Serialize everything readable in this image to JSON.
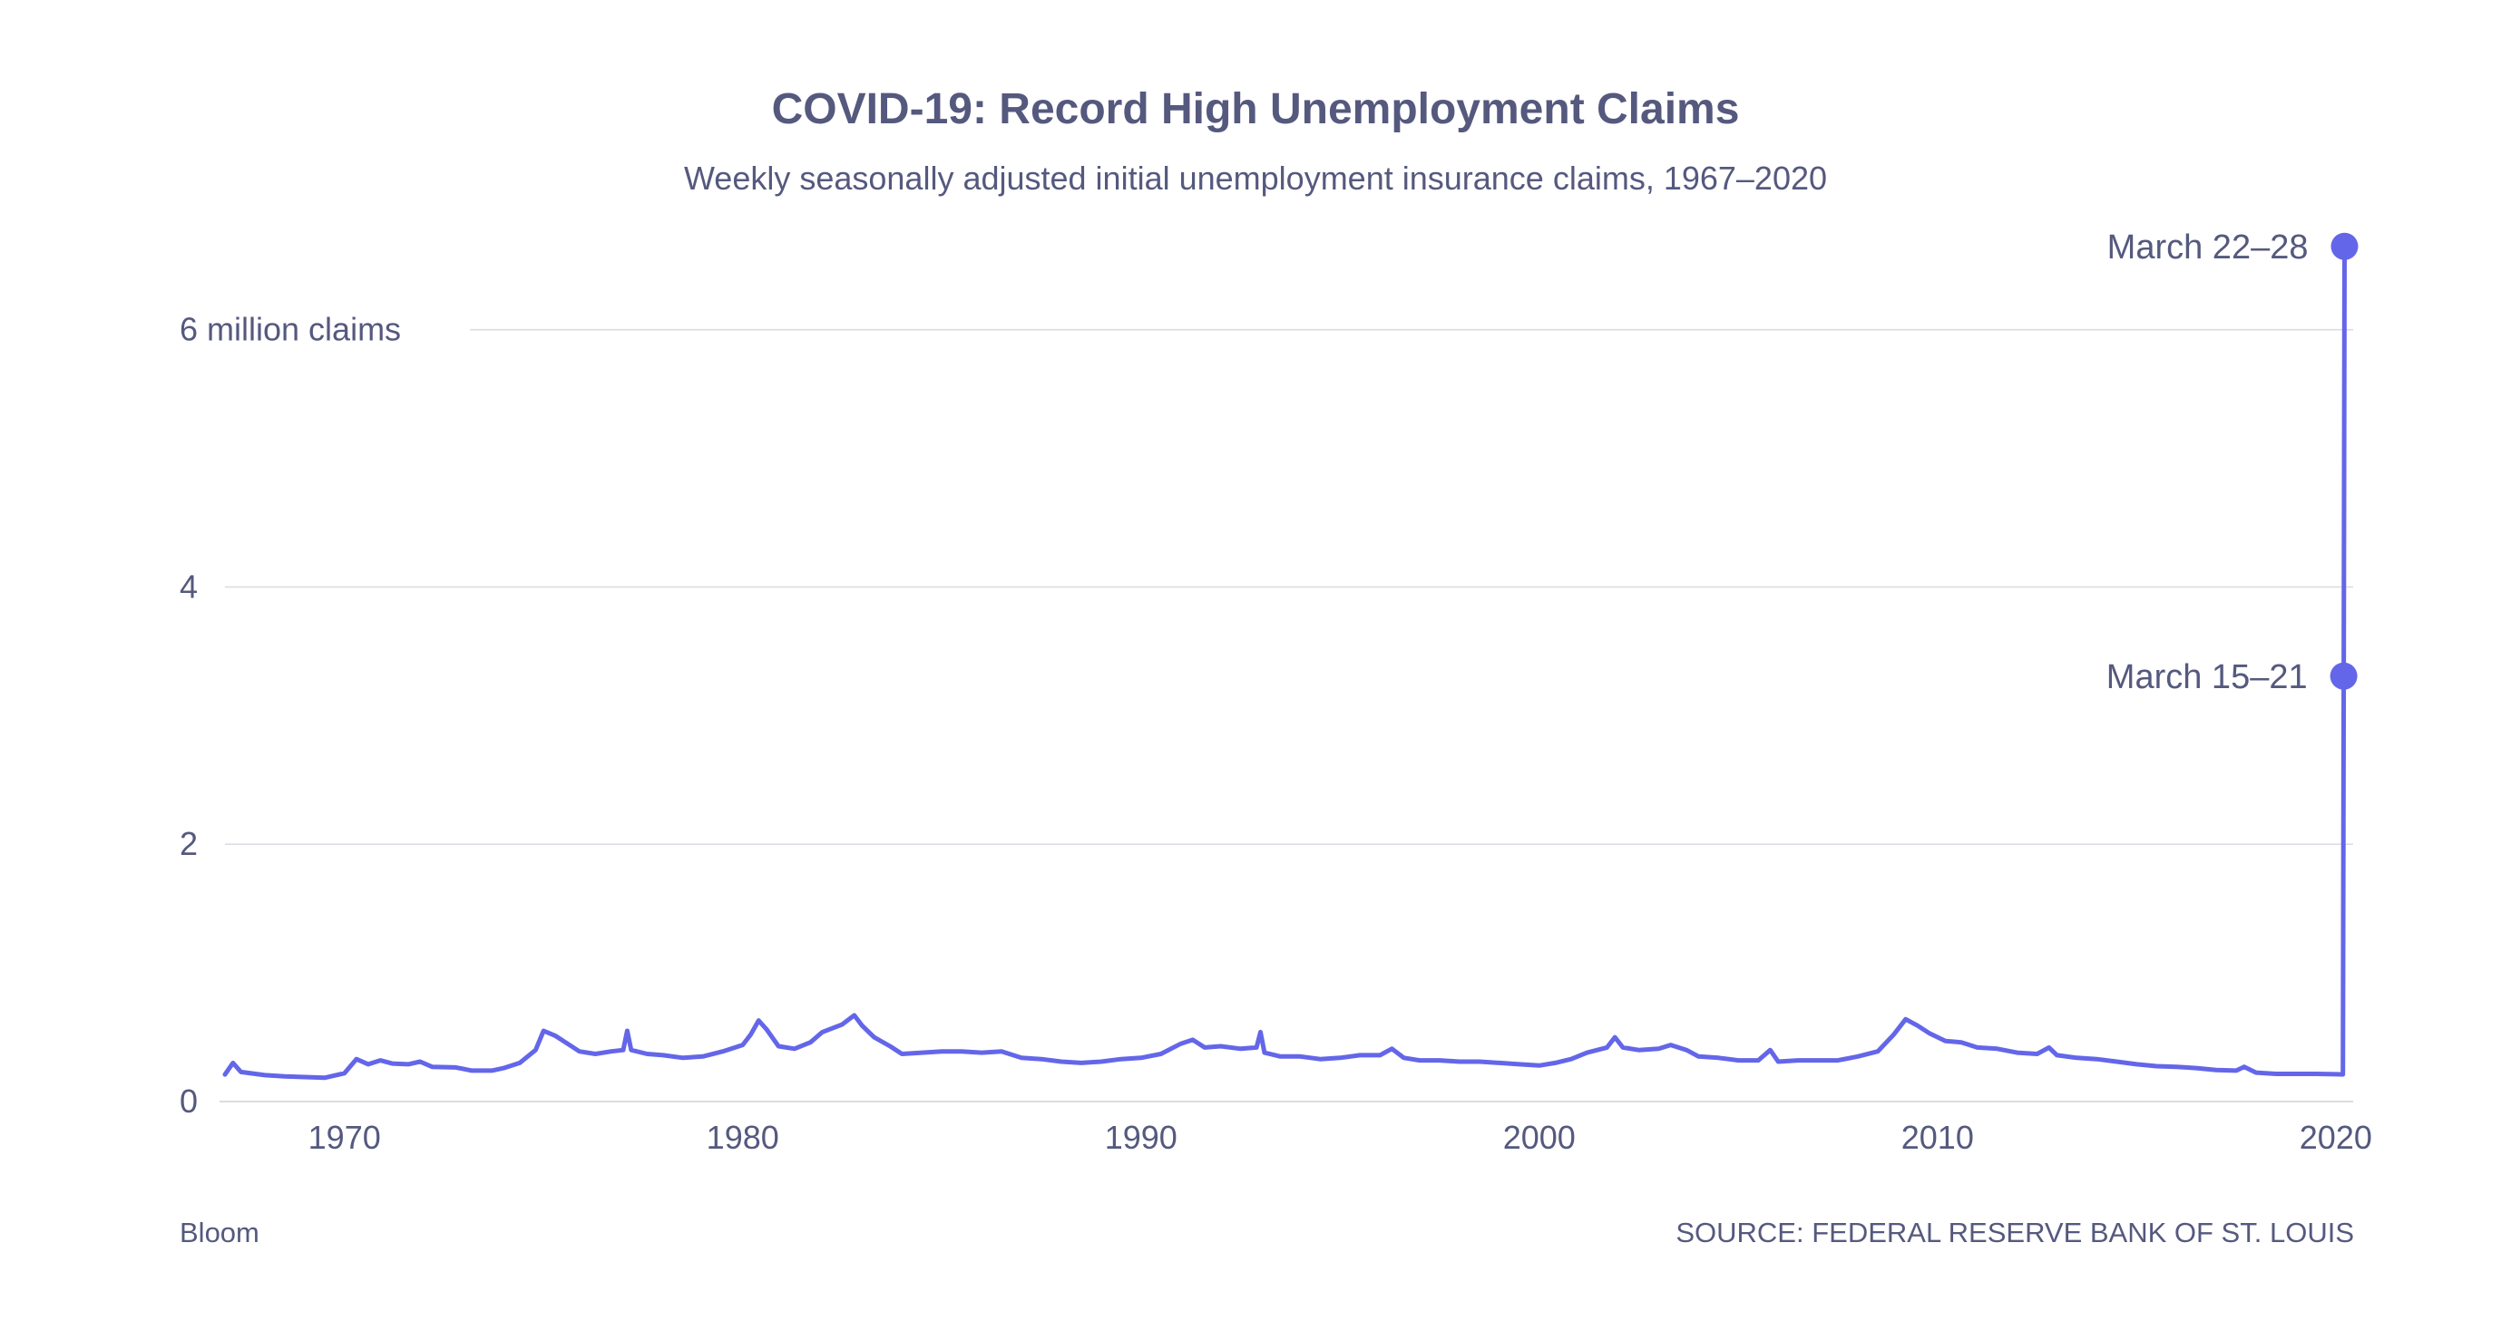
{
  "colors": {
    "series": "#6466e9",
    "text": "#55597e",
    "grid": "#dcdde3"
  },
  "footer": {
    "brand": "Bloom",
    "source": "SOURCE: FEDERAL RESERVE BANK OF ST. LOUIS"
  },
  "chart_data": {
    "type": "line",
    "title": "COVID-19: Record High Unemployment Claims",
    "subtitle": "Weekly seasonally adjusted initial unemployment insurance claims, 1967–2020",
    "xlabel": "",
    "ylabel": "",
    "x_unit": "year",
    "y_unit": "claims",
    "xlim": [
      1967.0,
      2020.3
    ],
    "ylim": [
      0,
      6900000
    ],
    "grid": true,
    "legend": "none",
    "x_ticks": [
      {
        "value": 1970,
        "label": "1970"
      },
      {
        "value": 1980,
        "label": "1980"
      },
      {
        "value": 1990,
        "label": "1990"
      },
      {
        "value": 2000,
        "label": "2000"
      },
      {
        "value": 2010,
        "label": "2010"
      },
      {
        "value": 2020,
        "label": "2020"
      }
    ],
    "y_ticks": [
      {
        "value": 0,
        "label": "0"
      },
      {
        "value": 2000000,
        "label": "2"
      },
      {
        "value": 4000000,
        "label": "4"
      },
      {
        "value": 6000000,
        "label": "6 million claims"
      }
    ],
    "series": [
      {
        "values": [
          [
            1967.0,
            210000
          ],
          [
            1967.2,
            300000
          ],
          [
            1967.4,
            230000
          ],
          [
            1968.0,
            205000
          ],
          [
            1968.5,
            195000
          ],
          [
            1969.0,
            190000
          ],
          [
            1969.5,
            185000
          ],
          [
            1970.0,
            220000
          ],
          [
            1970.3,
            330000
          ],
          [
            1970.6,
            290000
          ],
          [
            1970.9,
            320000
          ],
          [
            1971.2,
            295000
          ],
          [
            1971.6,
            290000
          ],
          [
            1971.9,
            310000
          ],
          [
            1972.2,
            270000
          ],
          [
            1972.8,
            265000
          ],
          [
            1973.2,
            240000
          ],
          [
            1973.7,
            240000
          ],
          [
            1974.0,
            260000
          ],
          [
            1974.4,
            300000
          ],
          [
            1974.8,
            400000
          ],
          [
            1975.0,
            550000
          ],
          [
            1975.3,
            510000
          ],
          [
            1975.6,
            450000
          ],
          [
            1975.9,
            390000
          ],
          [
            1976.3,
            370000
          ],
          [
            1976.7,
            390000
          ],
          [
            1977.0,
            400000
          ],
          [
            1977.1,
            550000
          ],
          [
            1977.2,
            400000
          ],
          [
            1977.6,
            370000
          ],
          [
            1978.0,
            360000
          ],
          [
            1978.5,
            340000
          ],
          [
            1979.0,
            350000
          ],
          [
            1979.5,
            390000
          ],
          [
            1980.0,
            440000
          ],
          [
            1980.2,
            520000
          ],
          [
            1980.4,
            630000
          ],
          [
            1980.6,
            560000
          ],
          [
            1980.9,
            430000
          ],
          [
            1981.3,
            410000
          ],
          [
            1981.7,
            460000
          ],
          [
            1982.0,
            540000
          ],
          [
            1982.5,
            600000
          ],
          [
            1982.8,
            670000
          ],
          [
            1983.0,
            590000
          ],
          [
            1983.3,
            500000
          ],
          [
            1983.7,
            430000
          ],
          [
            1984.0,
            370000
          ],
          [
            1984.5,
            380000
          ],
          [
            1985.0,
            390000
          ],
          [
            1985.5,
            390000
          ],
          [
            1986.0,
            380000
          ],
          [
            1986.5,
            390000
          ],
          [
            1987.0,
            340000
          ],
          [
            1987.5,
            330000
          ],
          [
            1988.0,
            310000
          ],
          [
            1988.5,
            300000
          ],
          [
            1989.0,
            310000
          ],
          [
            1989.5,
            330000
          ],
          [
            1990.0,
            340000
          ],
          [
            1990.5,
            370000
          ],
          [
            1991.0,
            450000
          ],
          [
            1991.3,
            480000
          ],
          [
            1991.6,
            420000
          ],
          [
            1992.0,
            430000
          ],
          [
            1992.5,
            410000
          ],
          [
            1992.9,
            420000
          ],
          [
            1993.0,
            540000
          ],
          [
            1993.1,
            380000
          ],
          [
            1993.5,
            350000
          ],
          [
            1994.0,
            350000
          ],
          [
            1994.5,
            330000
          ],
          [
            1995.0,
            340000
          ],
          [
            1995.5,
            360000
          ],
          [
            1996.0,
            360000
          ],
          [
            1996.3,
            410000
          ],
          [
            1996.6,
            340000
          ],
          [
            1997.0,
            320000
          ],
          [
            1997.5,
            320000
          ],
          [
            1998.0,
            310000
          ],
          [
            1998.5,
            310000
          ],
          [
            1999.0,
            300000
          ],
          [
            1999.5,
            290000
          ],
          [
            2000.0,
            280000
          ],
          [
            2000.4,
            300000
          ],
          [
            2000.8,
            330000
          ],
          [
            2001.2,
            380000
          ],
          [
            2001.7,
            420000
          ],
          [
            2001.9,
            500000
          ],
          [
            2002.1,
            420000
          ],
          [
            2002.5,
            400000
          ],
          [
            2003.0,
            410000
          ],
          [
            2003.3,
            440000
          ],
          [
            2003.7,
            400000
          ],
          [
            2004.0,
            350000
          ],
          [
            2004.5,
            340000
          ],
          [
            2005.0,
            320000
          ],
          [
            2005.5,
            320000
          ],
          [
            2005.8,
            400000
          ],
          [
            2006.0,
            310000
          ],
          [
            2006.5,
            320000
          ],
          [
            2007.0,
            320000
          ],
          [
            2007.5,
            320000
          ],
          [
            2008.0,
            350000
          ],
          [
            2008.5,
            390000
          ],
          [
            2008.9,
            520000
          ],
          [
            2009.2,
            640000
          ],
          [
            2009.5,
            590000
          ],
          [
            2009.8,
            530000
          ],
          [
            2010.2,
            470000
          ],
          [
            2010.6,
            460000
          ],
          [
            2011.0,
            420000
          ],
          [
            2011.5,
            410000
          ],
          [
            2012.0,
            380000
          ],
          [
            2012.5,
            370000
          ],
          [
            2012.8,
            420000
          ],
          [
            2013.0,
            360000
          ],
          [
            2013.5,
            340000
          ],
          [
            2014.0,
            330000
          ],
          [
            2014.5,
            310000
          ],
          [
            2015.0,
            290000
          ],
          [
            2015.5,
            275000
          ],
          [
            2016.0,
            270000
          ],
          [
            2016.5,
            260000
          ],
          [
            2017.0,
            245000
          ],
          [
            2017.5,
            240000
          ],
          [
            2017.7,
            270000
          ],
          [
            2018.0,
            225000
          ],
          [
            2018.5,
            215000
          ],
          [
            2019.0,
            215000
          ],
          [
            2019.5,
            215000
          ],
          [
            2020.0,
            212000
          ],
          [
            2020.18,
            211000
          ],
          [
            2020.2,
            3307000
          ],
          [
            2020.22,
            6648000
          ]
        ]
      }
    ],
    "annotations": [
      {
        "label": "March 22–28",
        "x": 2020.22,
        "y": 6648000
      },
      {
        "label": "March 15–21",
        "x": 2020.2,
        "y": 3307000
      }
    ]
  }
}
